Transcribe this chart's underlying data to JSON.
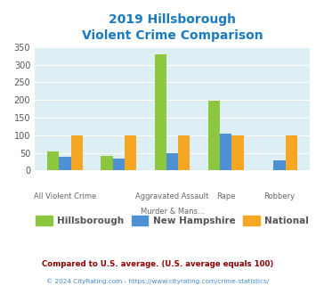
{
  "title_line1": "2019 Hillsborough",
  "title_line2": "Violent Crime Comparison",
  "title_color": "#1a7abf",
  "hillsborough": [
    55,
    42,
    330,
    197,
    0
  ],
  "new_hampshire": [
    40,
    33,
    50,
    104,
    29
  ],
  "national": [
    100,
    100,
    100,
    100,
    100
  ],
  "hillsborough_color": "#8dc63f",
  "new_hampshire_color": "#4d90d4",
  "national_color": "#f5a623",
  "ylim": [
    0,
    350
  ],
  "yticks": [
    0,
    50,
    100,
    150,
    200,
    250,
    300,
    350
  ],
  "bg_color": "#ddeef5",
  "legend_labels": [
    "Hillsborough",
    "New Hampshire",
    "National"
  ],
  "footnote1": "Compared to U.S. average. (U.S. average equals 100)",
  "footnote2": "© 2024 CityRating.com - https://www.cityrating.com/crime-statistics/",
  "footnote1_color": "#8b0000",
  "footnote2_color": "#4488cc",
  "bar_width": 0.22,
  "n_groups": 5,
  "xlabel_top": [
    "",
    "",
    "Aggravated Assault",
    "",
    ""
  ],
  "xlabel_bot": [
    "All Violent Crime",
    "",
    "Murder & Mans...",
    "Rape",
    "Robbery"
  ]
}
